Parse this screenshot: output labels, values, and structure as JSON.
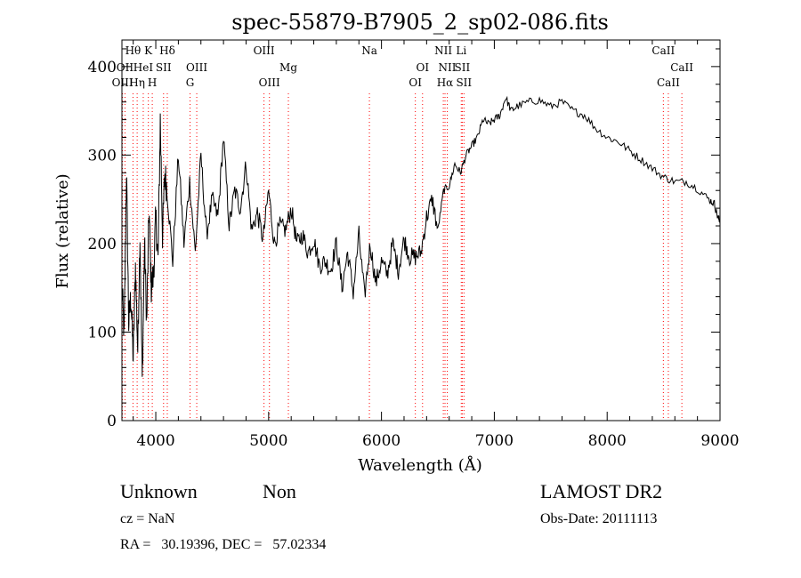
{
  "chart_data": {
    "type": "line",
    "title": "spec-55879-B7905_2_sp02-086.fits",
    "xlabel": "Wavelength (Å)",
    "ylabel": "Flux (relative)",
    "xlim": [
      3700,
      9000
    ],
    "ylim": [
      0,
      430
    ],
    "x_ticks": [
      4000,
      5000,
      6000,
      7000,
      8000,
      9000
    ],
    "y_ticks": [
      0,
      100,
      200,
      300,
      400
    ],
    "line_color": "#000000",
    "line_marker_color": "#ff0000",
    "series": [
      {
        "x": [
          3700,
          3720,
          3740,
          3760,
          3780,
          3800,
          3820,
          3840,
          3860,
          3880,
          3900,
          3920,
          3940,
          3960,
          3980,
          4000,
          4020,
          4040,
          4060,
          4080,
          4100,
          4150,
          4200,
          4250,
          4300,
          4350,
          4400,
          4450,
          4500,
          4550,
          4600,
          4650,
          4700,
          4750,
          4800,
          4850,
          4900,
          4950,
          5000,
          5050,
          5100,
          5150,
          5200,
          5250,
          5300,
          5350,
          5400,
          5450,
          5500,
          5550,
          5600,
          5650,
          5700,
          5750,
          5800,
          5850,
          5900,
          5950,
          6000,
          6050,
          6100,
          6150,
          6200,
          6250,
          6300,
          6350,
          6400,
          6450,
          6500,
          6550,
          6600,
          6650,
          6700,
          6750,
          6800,
          6850,
          6900,
          6950,
          7000,
          7050,
          7100,
          7150,
          7200,
          7300,
          7400,
          7500,
          7600,
          7700,
          7800,
          7900,
          8000,
          8100,
          8200,
          8300,
          8400,
          8500,
          8600,
          8700,
          8800,
          8900,
          8950,
          8980,
          9000
        ],
        "y": [
          150,
          95,
          285,
          110,
          140,
          70,
          175,
          80,
          210,
          45,
          200,
          110,
          240,
          150,
          165,
          230,
          180,
          340,
          210,
          280,
          260,
          180,
          300,
          200,
          270,
          190,
          300,
          210,
          250,
          230,
          320,
          220,
          260,
          240,
          290,
          215,
          235,
          205,
          260,
          200,
          220,
          215,
          240,
          200,
          210,
          190,
          205,
          175,
          180,
          170,
          200,
          150,
          190,
          145,
          210,
          140,
          200,
          155,
          180,
          165,
          200,
          170,
          205,
          185,
          185,
          190,
          230,
          250,
          215,
          260,
          265,
          290,
          280,
          300,
          310,
          320,
          340,
          335,
          340,
          345,
          365,
          350,
          355,
          360,
          362,
          355,
          360,
          350,
          345,
          330,
          320,
          315,
          305,
          295,
          285,
          275,
          270,
          270,
          262,
          250,
          245,
          230,
          225
        ]
      }
    ],
    "spectral_lines": [
      {
        "wavelength": 3705,
        "label": "OIII",
        "row": 2
      },
      {
        "wavelength": 3727,
        "label": "OII",
        "row": 1
      },
      {
        "wavelength": 3798,
        "label": "Hθ",
        "row": 0
      },
      {
        "wavelength": 3835,
        "label": "Hη",
        "row": 2
      },
      {
        "wavelength": 3889,
        "label": "HeI",
        "row": 1
      },
      {
        "wavelength": 3934,
        "label": "K",
        "row": 0
      },
      {
        "wavelength": 3969,
        "label": "H",
        "row": 2
      },
      {
        "wavelength": 4069,
        "label": "SII",
        "row": 1
      },
      {
        "wavelength": 4102,
        "label": "Hδ",
        "row": 0
      },
      {
        "wavelength": 4304,
        "label": "G",
        "row": 2
      },
      {
        "wavelength": 4363,
        "label": "OIII",
        "row": 1
      },
      {
        "wavelength": 4959,
        "label": "OIII",
        "row": 0
      },
      {
        "wavelength": 5007,
        "label": "OIII",
        "row": 2
      },
      {
        "wavelength": 5175,
        "label": "Mg",
        "row": 1
      },
      {
        "wavelength": 5893,
        "label": "Na",
        "row": 0
      },
      {
        "wavelength": 6300,
        "label": "OI",
        "row": 2
      },
      {
        "wavelength": 6364,
        "label": "OI",
        "row": 1
      },
      {
        "wavelength": 6548,
        "label": "NII",
        "row": 0
      },
      {
        "wavelength": 6563,
        "label": "Hα",
        "row": 2
      },
      {
        "wavelength": 6583,
        "label": "NII",
        "row": 1
      },
      {
        "wavelength": 6707,
        "label": "Li",
        "row": 0
      },
      {
        "wavelength": 6716,
        "label": "SII",
        "row": 1
      },
      {
        "wavelength": 6731,
        "label": "SII",
        "row": 2
      },
      {
        "wavelength": 8498,
        "label": "CaII",
        "row": 0
      },
      {
        "wavelength": 8542,
        "label": "CaII",
        "row": 2
      },
      {
        "wavelength": 8662,
        "label": "CaII",
        "row": 1
      }
    ]
  },
  "info": {
    "class": "Unknown",
    "subclass": "Non",
    "survey": "LAMOST DR2",
    "cz": "cz = NaN",
    "obs_date": "Obs-Date: 20111113",
    "coords": "RA =   30.19396, DEC =   57.02334"
  }
}
